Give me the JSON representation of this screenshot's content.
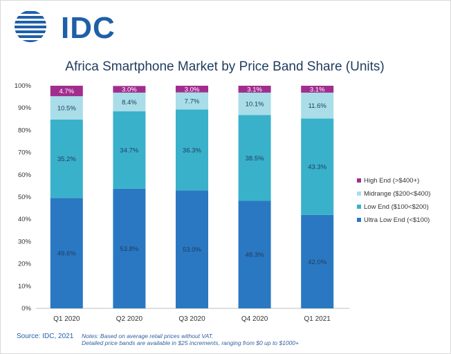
{
  "logo": {
    "text": "IDC"
  },
  "chart_data": {
    "type": "bar",
    "stacked": true,
    "title": "Africa Smartphone Market by Price Band Share (Units)",
    "categories": [
      "Q1 2020",
      "Q2 2020",
      "Q3 2020",
      "Q4 2020",
      "Q1 2021"
    ],
    "ylim": [
      0,
      100
    ],
    "yticks": [
      "0%",
      "10%",
      "20%",
      "30%",
      "40%",
      "50%",
      "60%",
      "70%",
      "80%",
      "90%",
      "100%"
    ],
    "series": [
      {
        "name": "Ultra Low End (<$100)",
        "color": "#2a78c2",
        "values": [
          49.6,
          53.8,
          53.0,
          48.3,
          42.0
        ],
        "labels": [
          "49.6%",
          "53.8%",
          "53.0%",
          "48.3%",
          "42.0%"
        ]
      },
      {
        "name": "Low End ($100<$200)",
        "color": "#3ab1cb",
        "values": [
          35.2,
          34.7,
          36.3,
          38.5,
          43.3
        ],
        "labels": [
          "35.2%",
          "34.7%",
          "36.3%",
          "38.5%",
          "43.3%"
        ]
      },
      {
        "name": "Midrange ($200<$400)",
        "color": "#a9dde8",
        "values": [
          10.5,
          8.4,
          7.7,
          10.1,
          11.6
        ],
        "labels": [
          "10.5%",
          "8.4%",
          "7.7%",
          "10.1%",
          "11.6%"
        ]
      },
      {
        "name": "High End (>$400+)",
        "color": "#a12e8f",
        "values": [
          4.7,
          3.0,
          3.0,
          3.1,
          3.1
        ],
        "labels": [
          "4.7%",
          "3.0%",
          "3.0%",
          "3.1%",
          "3.1%"
        ]
      }
    ],
    "legend_order": [
      3,
      2,
      1,
      0
    ],
    "legend_position": "right"
  },
  "footer": {
    "source": "Source: IDC, 2021",
    "notes_line1": "Notes: Based on average retail prices without VAT.",
    "notes_line2": "Detailed price bands are available in $25 increments, ranging from $0 up to $1000+"
  }
}
